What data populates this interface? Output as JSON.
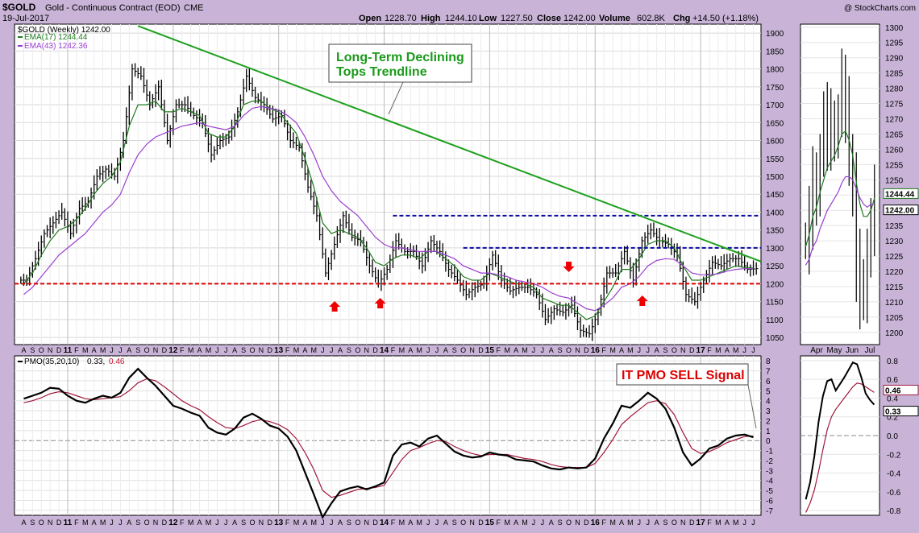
{
  "header": {
    "symbol": "$GOLD",
    "name": "Gold - Continuous Contract (EOD)",
    "exchange": "CME",
    "date": "19-Jul-2017",
    "watermark": "@ StockCharts.com",
    "open_label": "Open",
    "open": "1228.70",
    "high_label": "High",
    "high": "1244.10",
    "low_label": "Low",
    "low": "1227.50",
    "close_label": "Close",
    "close": "1242.00",
    "volume_label": "Volume",
    "volume": "602.8K",
    "chg_label": "Chg",
    "chg": "+14.50 (+1.18%)"
  },
  "legend": {
    "price": "$GOLD (Weekly) 1242.00",
    "ema17": "EMA(17) 1244.44",
    "ema43": "EMA(43) 1242.36",
    "pmo_label": "PMO(35,20,10)",
    "pmo_value": "0.33,",
    "pmo_signal": "0.46"
  },
  "annotations": {
    "trend_line1": "Long-Term Declining",
    "trend_line2": "Tops Trendline",
    "pmo_signal_note": "IT PMO SELL Signal"
  },
  "colors": {
    "background": "#c9b4d8",
    "panel": "#ffffff",
    "price_bars": "#000000",
    "ema17": "#1f7a1f",
    "ema43": "#9a3fd0",
    "trendline": "#1ea01e",
    "resistance": "#0a0aa0",
    "support": "#dd0000",
    "arrows": "#ee0000",
    "pmo": "#000000",
    "pmo_signal": "#a0183a"
  },
  "chart_data": [
    {
      "id": "main-price",
      "type": "ohlc",
      "title": "$GOLD (Weekly) 1242.00",
      "y_ticks": [
        1050,
        1100,
        1150,
        1200,
        1250,
        1300,
        1350,
        1400,
        1450,
        1500,
        1550,
        1600,
        1650,
        1700,
        1750,
        1800,
        1850,
        1900
      ],
      "ylim": [
        1030,
        1925
      ],
      "x_months": [
        "A",
        "S",
        "O",
        "N",
        "D",
        "11",
        "F",
        "M",
        "A",
        "M",
        "J",
        "J",
        "A",
        "S",
        "O",
        "N",
        "D",
        "12",
        "F",
        "M",
        "A",
        "M",
        "J",
        "J",
        "A",
        "S",
        "O",
        "N",
        "D",
        "13",
        "F",
        "M",
        "A",
        "M",
        "J",
        "J",
        "A",
        "S",
        "O",
        "N",
        "D",
        "14",
        "F",
        "M",
        "A",
        "M",
        "J",
        "J",
        "A",
        "S",
        "O",
        "N",
        "D",
        "15",
        "F",
        "M",
        "A",
        "M",
        "J",
        "J",
        "A",
        "S",
        "O",
        "N",
        "D",
        "16",
        "F",
        "M",
        "A",
        "M",
        "J",
        "J",
        "A",
        "S",
        "O",
        "N",
        "D",
        "17",
        "F",
        "M",
        "A",
        "M",
        "J",
        "J"
      ],
      "series": [
        {
          "name": "Close",
          "start": "Aug 2010",
          "frequency": "monthly",
          "values": [
            1210,
            1270,
            1340,
            1370,
            1400,
            1340,
            1410,
            1430,
            1500,
            1520,
            1500,
            1600,
            1800,
            1780,
            1700,
            1750,
            1600,
            1700,
            1700,
            1670,
            1650,
            1560,
            1600,
            1610,
            1680,
            1780,
            1720,
            1700,
            1660,
            1670,
            1600,
            1580,
            1470,
            1390,
            1230,
            1310,
            1390,
            1330,
            1320,
            1250,
            1200,
            1240,
            1320,
            1290,
            1290,
            1250,
            1320,
            1290,
            1240,
            1210,
            1170,
            1190,
            1200,
            1280,
            1210,
            1180,
            1190,
            1190,
            1170,
            1100,
            1130,
            1120,
            1140,
            1070,
            1060,
            1120,
            1230,
            1230,
            1290,
            1210,
            1320,
            1350,
            1320,
            1310,
            1280,
            1170,
            1150,
            1210,
            1260,
            1250,
            1270,
            1270,
            1240,
            1242
          ]
        },
        {
          "name": "EMA(17)",
          "start": "Aug 2010",
          "frequency": "monthly",
          "values": [
            1200,
            1230,
            1280,
            1320,
            1350,
            1360,
            1380,
            1410,
            1450,
            1480,
            1500,
            1540,
            1640,
            1700,
            1700,
            1710,
            1680,
            1680,
            1690,
            1680,
            1670,
            1620,
            1610,
            1610,
            1640,
            1700,
            1710,
            1710,
            1690,
            1680,
            1650,
            1620,
            1550,
            1470,
            1370,
            1340,
            1350,
            1340,
            1330,
            1300,
            1260,
            1250,
            1270,
            1280,
            1280,
            1270,
            1290,
            1290,
            1270,
            1250,
            1220,
            1210,
            1210,
            1230,
            1220,
            1210,
            1200,
            1200,
            1190,
            1160,
            1150,
            1140,
            1140,
            1120,
            1100,
            1110,
            1150,
            1190,
            1240,
            1240,
            1270,
            1310,
            1320,
            1320,
            1300,
            1250,
            1210,
            1210,
            1220,
            1230,
            1240,
            1250,
            1245,
            1244
          ]
        },
        {
          "name": "EMA(43)",
          "start": "Aug 2010",
          "frequency": "monthly",
          "values": [
            1170,
            1190,
            1220,
            1250,
            1280,
            1300,
            1320,
            1340,
            1370,
            1400,
            1420,
            1450,
            1510,
            1560,
            1590,
            1610,
            1620,
            1630,
            1640,
            1645,
            1650,
            1640,
            1635,
            1630,
            1640,
            1670,
            1690,
            1695,
            1690,
            1685,
            1670,
            1650,
            1610,
            1560,
            1500,
            1460,
            1430,
            1410,
            1390,
            1360,
            1330,
            1310,
            1300,
            1300,
            1295,
            1290,
            1290,
            1290,
            1280,
            1270,
            1250,
            1240,
            1230,
            1230,
            1225,
            1220,
            1210,
            1205,
            1200,
            1190,
            1175,
            1165,
            1160,
            1145,
            1130,
            1125,
            1140,
            1160,
            1190,
            1200,
            1220,
            1250,
            1265,
            1270,
            1268,
            1250,
            1230,
            1225,
            1225,
            1228,
            1235,
            1240,
            1242,
            1242
          ]
        }
      ],
      "lines": {
        "support": 1200,
        "resistance_1": 1390,
        "resistance_2": 1300,
        "trendline_from": {
          "x": "Sep 2011",
          "y": 1920
        },
        "trendline_to": {
          "x": "Jul 2017",
          "y": 1262
        }
      },
      "legend": [
        "$GOLD (Weekly) 1242.00",
        "EMA(17) 1244.44",
        "EMA(43) 1242.36"
      ],
      "legend_placement": "top-left",
      "grid": true
    },
    {
      "id": "pmo",
      "type": "line",
      "title": "PMO(35,20,10) 0.33, 0.46",
      "y_ticks": [
        -7,
        -6,
        -5,
        -4,
        -3,
        -2,
        -1,
        0,
        1,
        2,
        3,
        4,
        5,
        6,
        7,
        8
      ],
      "ylim": [
        -7.5,
        8.5
      ],
      "series": [
        {
          "name": "PMO",
          "start": "Aug 2010",
          "frequency": "monthly",
          "values": [
            4.2,
            4.5,
            4.8,
            5.3,
            5.2,
            4.5,
            4.0,
            3.8,
            4.2,
            4.5,
            4.3,
            4.8,
            6.3,
            7.2,
            6.3,
            5.5,
            4.5,
            3.5,
            3.2,
            2.8,
            2.5,
            1.3,
            0.8,
            0.6,
            1.2,
            2.3,
            2.7,
            2.2,
            1.5,
            1.2,
            0.4,
            -1.0,
            -3.2,
            -5.4,
            -7.7,
            -6.3,
            -5.1,
            -4.8,
            -4.6,
            -4.9,
            -4.6,
            -4.2,
            -1.5,
            -0.4,
            -0.2,
            -0.6,
            0.2,
            0.5,
            -0.3,
            -1.1,
            -1.5,
            -1.7,
            -1.6,
            -1.2,
            -1.4,
            -1.5,
            -1.9,
            -2.0,
            -2.1,
            -2.5,
            -2.8,
            -2.9,
            -2.7,
            -2.8,
            -2.7,
            -1.8,
            0.2,
            1.7,
            3.5,
            3.3,
            4.0,
            4.8,
            4.2,
            3.2,
            1.3,
            -1.2,
            -2.5,
            -1.8,
            -0.8,
            -0.5,
            0.2,
            0.5,
            0.6,
            0.33
          ]
        },
        {
          "name": "Signal",
          "start": "Aug 2010",
          "frequency": "monthly",
          "values": [
            3.8,
            4.0,
            4.3,
            4.7,
            4.9,
            4.8,
            4.5,
            4.2,
            4.1,
            4.2,
            4.3,
            4.4,
            5.0,
            5.8,
            6.2,
            6.0,
            5.4,
            4.7,
            4.0,
            3.5,
            3.1,
            2.4,
            1.8,
            1.3,
            1.2,
            1.5,
            1.9,
            2.1,
            1.9,
            1.6,
            1.1,
            0.2,
            -1.2,
            -2.9,
            -5.0,
            -5.7,
            -5.5,
            -5.2,
            -4.9,
            -4.8,
            -4.7,
            -4.5,
            -3.2,
            -1.9,
            -1.0,
            -0.7,
            -0.3,
            0.0,
            -0.1,
            -0.6,
            -1.0,
            -1.3,
            -1.5,
            -1.4,
            -1.4,
            -1.4,
            -1.6,
            -1.8,
            -1.9,
            -2.1,
            -2.4,
            -2.6,
            -2.7,
            -2.7,
            -2.7,
            -2.3,
            -1.2,
            0.1,
            1.6,
            2.4,
            3.1,
            3.8,
            4.0,
            3.7,
            2.6,
            0.8,
            -0.8,
            -1.3,
            -1.1,
            -0.7,
            -0.2,
            0.1,
            0.4,
            0.46
          ]
        }
      ],
      "zero_line": true
    },
    {
      "id": "mini-price",
      "type": "ohlc",
      "title": "",
      "y_ticks": [
        1200,
        1205,
        1210,
        1215,
        1220,
        1225,
        1230,
        1235,
        1240,
        1245,
        1250,
        1255,
        1260,
        1265,
        1270,
        1275,
        1280,
        1285,
        1290,
        1295,
        1300
      ],
      "ylim": [
        1196,
        1301
      ],
      "x_labels": [
        "Apr",
        "May",
        "Jun",
        "Jul"
      ],
      "value_tags": [
        "1244.44",
        "1242.00"
      ]
    },
    {
      "id": "mini-pmo",
      "type": "line",
      "title": "",
      "y_ticks": [
        -0.8,
        -0.6,
        -0.4,
        -0.2,
        0.0,
        0.2,
        0.4,
        0.6,
        0.8
      ],
      "ylim": [
        -0.85,
        0.85
      ],
      "x_labels": [
        "Apr",
        "May",
        "Jun",
        "Jul"
      ],
      "value_tags": [
        "0.46",
        "0.33"
      ],
      "series": [
        {
          "name": "PMO",
          "start": "Mar 2017",
          "frequency": "weekly",
          "values": [
            -0.68,
            -0.5,
            -0.22,
            0.15,
            0.42,
            0.58,
            0.6,
            0.48,
            0.55,
            0.62,
            0.7,
            0.78,
            0.76,
            0.62,
            0.45,
            0.38,
            0.33
          ]
        },
        {
          "name": "Signal",
          "start": "Mar 2017",
          "frequency": "weekly",
          "values": [
            -0.82,
            -0.72,
            -0.58,
            -0.38,
            -0.15,
            0.06,
            0.2,
            0.28,
            0.34,
            0.4,
            0.46,
            0.52,
            0.56,
            0.55,
            0.52,
            0.49,
            0.46
          ]
        }
      ]
    }
  ]
}
